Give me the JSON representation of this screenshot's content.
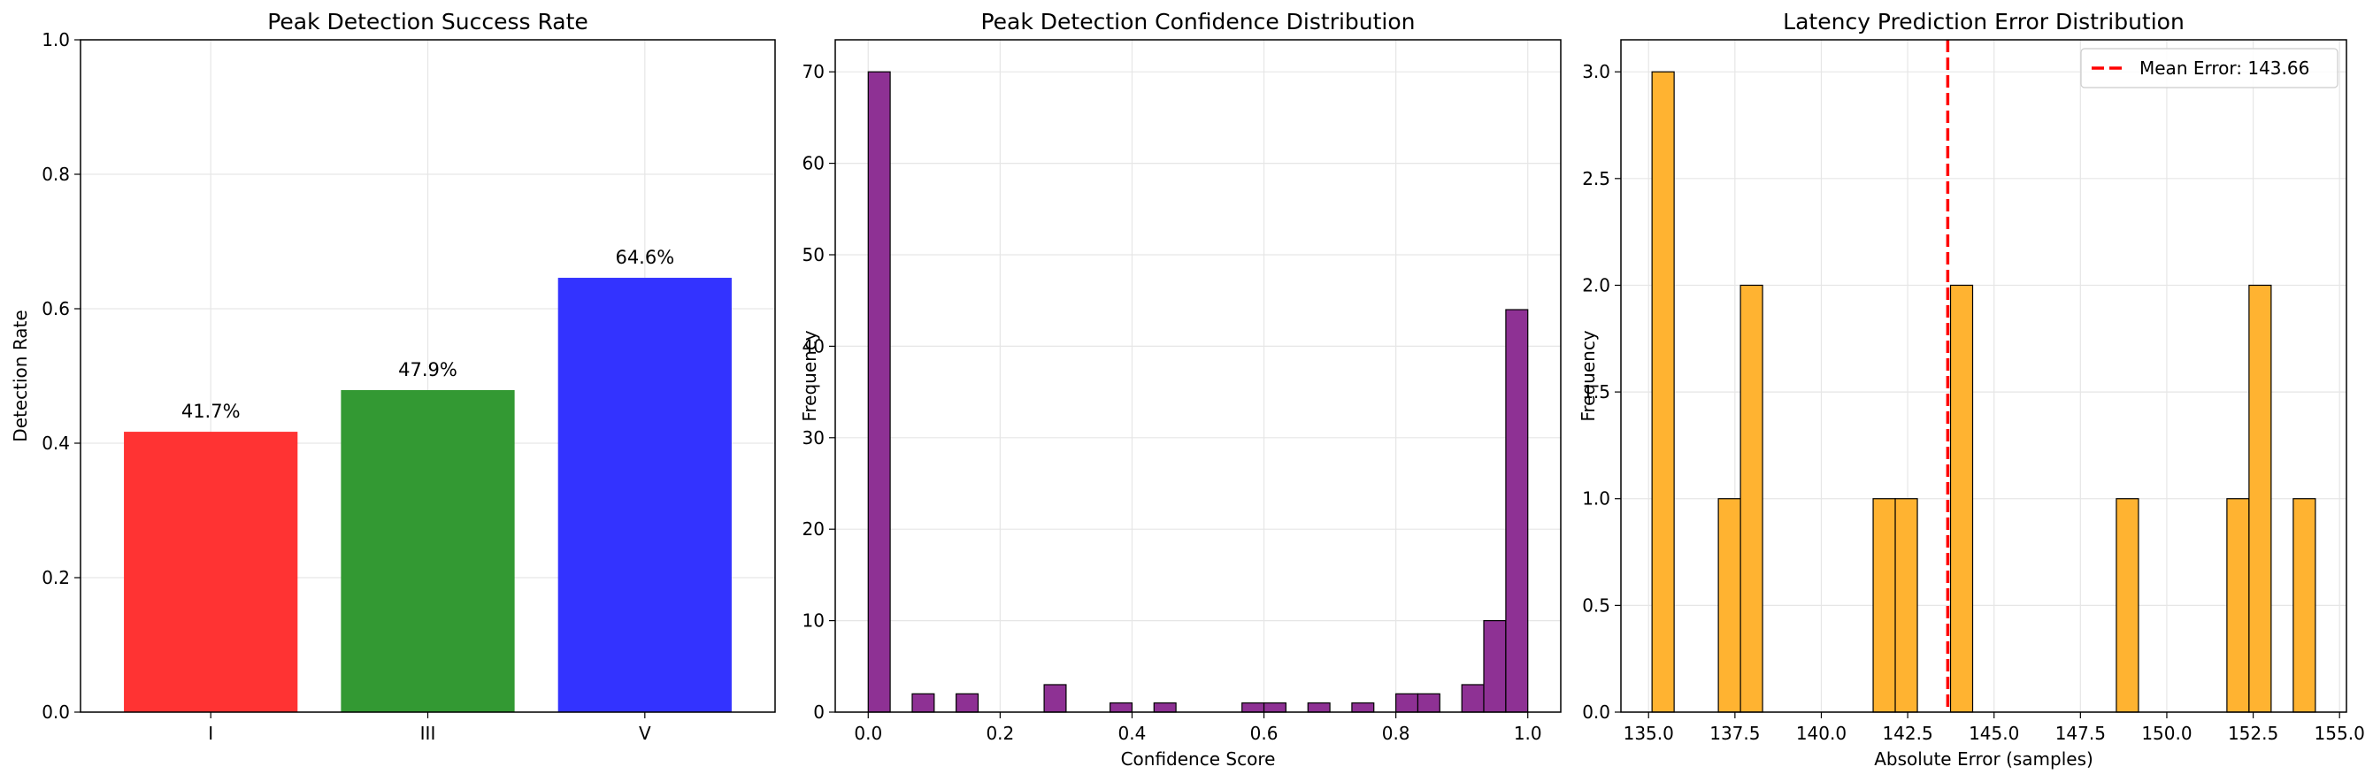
{
  "chart_data": [
    {
      "type": "bar",
      "title": "Peak Detection Success Rate",
      "xlabel": "",
      "ylabel": "Detection Rate",
      "categories": [
        "I",
        "III",
        "V"
      ],
      "values": [
        0.417,
        0.479,
        0.646
      ],
      "data_labels": [
        "41.7%",
        "47.9%",
        "64.6%"
      ],
      "colors": [
        "#ff3333",
        "#339933",
        "#3333ff"
      ],
      "ylim": [
        0,
        1.0
      ],
      "yticks": [
        0.0,
        0.2,
        0.4,
        0.6,
        0.8,
        1.0
      ],
      "ytick_labels": [
        "0.0",
        "0.2",
        "0.4",
        "0.6",
        "0.8",
        "1.0"
      ],
      "grid": true
    },
    {
      "type": "bar",
      "title": "Peak Detection Confidence Distribution",
      "xlabel": "Confidence Score",
      "ylabel": "Frequency",
      "bin_width": 0.0333,
      "bins": [
        {
          "x": 0.0,
          "count": 70
        },
        {
          "x": 0.0667,
          "count": 2
        },
        {
          "x": 0.1333,
          "count": 2
        },
        {
          "x": 0.2667,
          "count": 3
        },
        {
          "x": 0.3667,
          "count": 1
        },
        {
          "x": 0.4333,
          "count": 1
        },
        {
          "x": 0.5667,
          "count": 1
        },
        {
          "x": 0.6,
          "count": 1
        },
        {
          "x": 0.6667,
          "count": 1
        },
        {
          "x": 0.7333,
          "count": 1
        },
        {
          "x": 0.8,
          "count": 2
        },
        {
          "x": 0.8333,
          "count": 2
        },
        {
          "x": 0.9,
          "count": 3
        },
        {
          "x": 0.9333,
          "count": 10
        },
        {
          "x": 0.9667,
          "count": 44
        }
      ],
      "color": "#8e3194",
      "xlim": [
        -0.05,
        1.05
      ],
      "ylim": [
        0,
        73.5
      ],
      "xticks": [
        0.0,
        0.2,
        0.4,
        0.6,
        0.8,
        1.0
      ],
      "xtick_labels": [
        "0.0",
        "0.2",
        "0.4",
        "0.6",
        "0.8",
        "1.0"
      ],
      "yticks": [
        0,
        10,
        20,
        30,
        40,
        50,
        60,
        70
      ],
      "ytick_labels": [
        "0",
        "10",
        "20",
        "30",
        "40",
        "50",
        "60",
        "70"
      ],
      "grid": true
    },
    {
      "type": "bar",
      "title": "Latency Prediction Error Distribution",
      "xlabel": "Absolute Error (samples)",
      "ylabel": "Frequency",
      "bin_width": 0.64,
      "bins": [
        {
          "x": 135.1,
          "count": 3
        },
        {
          "x": 137.02,
          "count": 1
        },
        {
          "x": 137.66,
          "count": 2
        },
        {
          "x": 141.5,
          "count": 1
        },
        {
          "x": 142.14,
          "count": 1
        },
        {
          "x": 143.74,
          "count": 2
        },
        {
          "x": 148.54,
          "count": 1
        },
        {
          "x": 151.74,
          "count": 1
        },
        {
          "x": 152.38,
          "count": 2
        },
        {
          "x": 153.66,
          "count": 1
        }
      ],
      "color": "#ffb331",
      "mean_line": {
        "value": 143.66,
        "label": "Mean Error: 143.66",
        "color": "#ff0000"
      },
      "legend_position": "top-right",
      "xlim": [
        134.2,
        155.2
      ],
      "ylim": [
        0,
        3.15
      ],
      "xticks": [
        135.0,
        137.5,
        140.0,
        142.5,
        145.0,
        147.5,
        150.0,
        152.5,
        155.0
      ],
      "xtick_labels": [
        "135.0",
        "137.5",
        "140.0",
        "142.5",
        "145.0",
        "147.5",
        "150.0",
        "152.5",
        "155.0"
      ],
      "yticks": [
        0.0,
        0.5,
        1.0,
        1.5,
        2.0,
        2.5,
        3.0
      ],
      "ytick_labels": [
        "0.0",
        "0.5",
        "1.0",
        "1.5",
        "2.0",
        "2.5",
        "3.0"
      ],
      "grid": true
    }
  ]
}
